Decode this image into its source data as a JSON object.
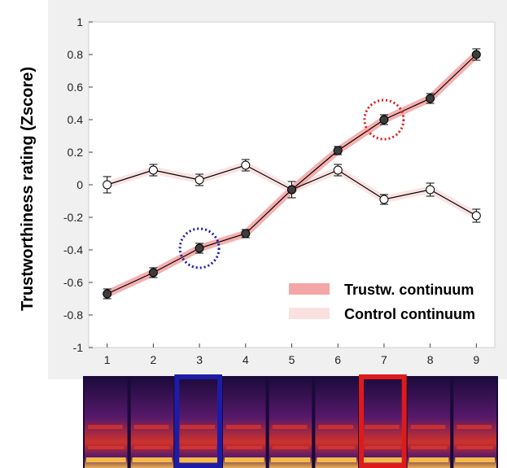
{
  "chart_data": {
    "type": "line",
    "ylabel": "Trustworthiness rating (Zscore)",
    "xlabel": "",
    "x": [
      1,
      2,
      3,
      4,
      5,
      6,
      7,
      8,
      9
    ],
    "x_ticks": [
      "1",
      "2",
      "3",
      "4",
      "5",
      "6",
      "7",
      "8",
      "9"
    ],
    "xlim": [
      0.6,
      9.4
    ],
    "ylim": [
      -1,
      1
    ],
    "y_ticks": [
      "1",
      "0.8",
      "0.6",
      "0.4",
      "0.2",
      "0",
      "-0.2",
      "-0.4",
      "-0.6",
      "-0.8",
      "-1"
    ],
    "y_tick_values": [
      1,
      0.8,
      0.6,
      0.4,
      0.2,
      0,
      -0.2,
      -0.4,
      -0.6,
      -0.8,
      -1
    ],
    "grid": false,
    "legend_position": "bottom-right",
    "series": [
      {
        "name": "Trustw. continuum",
        "marker": "filled-dark",
        "band_color": "#f4a6a6",
        "values": [
          -0.67,
          -0.54,
          -0.39,
          -0.3,
          -0.03,
          0.21,
          0.4,
          0.53,
          0.8
        ],
        "errors": [
          0.03,
          0.03,
          0.03,
          0.025,
          0.05,
          0.025,
          0.03,
          0.03,
          0.035
        ]
      },
      {
        "name": "Control continuum",
        "marker": "open-white",
        "band_color": "#fbe0e0",
        "values": [
          0,
          0.09,
          0.03,
          0.12,
          -0.03,
          0.09,
          -0.09,
          -0.03,
          -0.19
        ],
        "errors": [
          0.05,
          0.035,
          0.035,
          0.035,
          0.05,
          0.035,
          0.03,
          0.04,
          0.04
        ]
      }
    ],
    "annotations": [
      {
        "type": "dotted-circle",
        "color": "#1c1ca8",
        "x": 3,
        "y": -0.39
      },
      {
        "type": "dotted-circle",
        "color": "#e01a1a",
        "x": 7,
        "y": 0.4
      }
    ],
    "spectrogram": {
      "segments": 9,
      "highlights": [
        {
          "segment": 3,
          "color": "#1c1ca8"
        },
        {
          "segment": 7,
          "color": "#e01a1a"
        }
      ],
      "colors": {
        "background": "#1a0a3a",
        "mid": "#5a1a6e",
        "high": "#d8342a",
        "peak": "#f5b94a"
      }
    }
  }
}
